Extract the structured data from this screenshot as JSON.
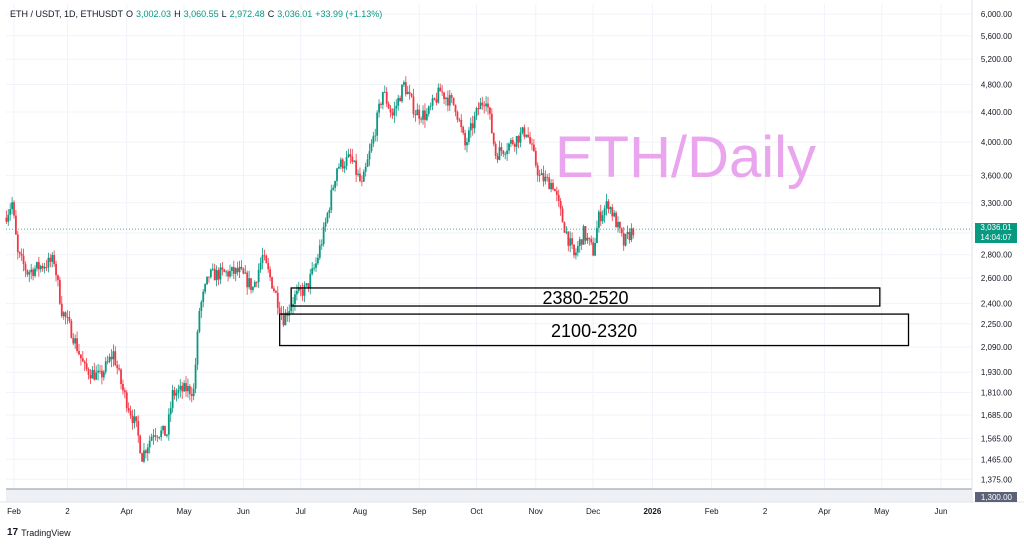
{
  "header": {
    "symbol": "ETH / USDT, 1D, ETHUSDT",
    "o_label": "O",
    "o_value": "3,002.03",
    "h_label": "H",
    "h_value": "3,060.55",
    "l_label": "L",
    "l_value": "2,972.48",
    "c_label": "C",
    "c_value": "3,036.01",
    "change": "+33.99 (+1.13%)"
  },
  "watermark": "ETH/Daily",
  "branding": "TradingView",
  "last_price": {
    "value": 3036.01,
    "label": "3,036.01",
    "countdown": "14:04:07"
  },
  "colors": {
    "up": "#089981",
    "down": "#f23645",
    "watermark": "#e9a6ee",
    "bottom_band": "#b2b5be",
    "price_line": "#089981"
  },
  "chart_data": {
    "type": "candlestick",
    "scale": "log",
    "y_ticks": [
      1300,
      1375,
      1465,
      1565,
      1685,
      1810,
      1930,
      2090,
      2250,
      2400,
      2600,
      2800,
      3000,
      3300,
      3600,
      4000,
      4400,
      4800,
      5200,
      5600,
      6000
    ],
    "y_tick_labels": [
      "1,300.00",
      "1,375.00",
      "1,465.00",
      "1,565.00",
      "1,685.00",
      "1,810.00",
      "1,930.00",
      "2,090.00",
      "2,250.00",
      "2,400.00",
      "2,600.00",
      "2,800.00",
      "3,000.00",
      "3,300.00",
      "3,600.00",
      "4,000.00",
      "4,400.00",
      "4,800.00",
      "5,200.00",
      "5,600.00",
      "6,000.00"
    ],
    "ylim": [
      1300,
      6000
    ],
    "x_ticks": [
      {
        "label": "Feb",
        "date": "2025-02-01"
      },
      {
        "label": "2",
        "date": "2025-03-01"
      },
      {
        "label": "Apr",
        "date": "2025-04-01"
      },
      {
        "label": "May",
        "date": "2025-05-01"
      },
      {
        "label": "Jun",
        "date": "2025-06-01"
      },
      {
        "label": "Jul",
        "date": "2025-07-01"
      },
      {
        "label": "Aug",
        "date": "2025-08-01"
      },
      {
        "label": "Sep",
        "date": "2025-09-01"
      },
      {
        "label": "Oct",
        "date": "2025-10-01"
      },
      {
        "label": "Nov",
        "date": "2025-11-01"
      },
      {
        "label": "Dec",
        "date": "2025-12-01"
      },
      {
        "label": "2026",
        "date": "2026-01-01"
      },
      {
        "label": "Feb",
        "date": "2026-02-01"
      },
      {
        "label": "2",
        "date": "2026-03-01"
      },
      {
        "label": "Apr",
        "date": "2026-04-01"
      },
      {
        "label": "May",
        "date": "2026-05-01"
      },
      {
        "label": "Jun",
        "date": "2026-06-01"
      }
    ],
    "first_date": "2025-01-28",
    "end_date": "2026-07-01",
    "price_path": [
      [
        "2025-01-28",
        3180
      ],
      [
        "2025-01-31",
        3300
      ],
      [
        "2025-02-03",
        2800
      ],
      [
        "2025-02-08",
        2650
      ],
      [
        "2025-02-15",
        2700
      ],
      [
        "2025-02-22",
        2750
      ],
      [
        "2025-02-26",
        2350
      ],
      [
        "2025-03-03",
        2200
      ],
      [
        "2025-03-10",
        1950
      ],
      [
        "2025-03-18",
        1900
      ],
      [
        "2025-03-25",
        2050
      ],
      [
        "2025-03-30",
        1820
      ],
      [
        "2025-04-06",
        1620
      ],
      [
        "2025-04-09",
        1480
      ],
      [
        "2025-04-15",
        1600
      ],
      [
        "2025-04-22",
        1590
      ],
      [
        "2025-04-25",
        1800
      ],
      [
        "2025-05-02",
        1830
      ],
      [
        "2025-05-06",
        1820
      ],
      [
        "2025-05-09",
        2350
      ],
      [
        "2025-05-14",
        2620
      ],
      [
        "2025-05-22",
        2640
      ],
      [
        "2025-05-30",
        2650
      ],
      [
        "2025-06-06",
        2520
      ],
      [
        "2025-06-11",
        2780
      ],
      [
        "2025-06-16",
        2560
      ],
      [
        "2025-06-22",
        2290
      ],
      [
        "2025-06-28",
        2450
      ],
      [
        "2025-07-04",
        2520
      ],
      [
        "2025-07-09",
        2720
      ],
      [
        "2025-07-13",
        3000
      ],
      [
        "2025-07-20",
        3700
      ],
      [
        "2025-07-27",
        3800
      ],
      [
        "2025-08-02",
        3480
      ],
      [
        "2025-08-08",
        4050
      ],
      [
        "2025-08-13",
        4700
      ],
      [
        "2025-08-18",
        4350
      ],
      [
        "2025-08-24",
        4800
      ],
      [
        "2025-08-30",
        4400
      ],
      [
        "2025-09-05",
        4350
      ],
      [
        "2025-09-12",
        4700
      ],
      [
        "2025-09-20",
        4480
      ],
      [
        "2025-09-25",
        3950
      ],
      [
        "2025-10-02",
        4450
      ],
      [
        "2025-10-06",
        4620
      ],
      [
        "2025-10-11",
        3850
      ],
      [
        "2025-10-17",
        3950
      ],
      [
        "2025-10-27",
        4150
      ],
      [
        "2025-11-03",
        3580
      ],
      [
        "2025-11-10",
        3500
      ],
      [
        "2025-11-15",
        3120
      ],
      [
        "2025-11-21",
        2780
      ],
      [
        "2025-11-26",
        3000
      ],
      [
        "2025-12-01",
        2830
      ],
      [
        "2025-12-04",
        3150
      ],
      [
        "2025-12-09",
        3300
      ],
      [
        "2025-12-13",
        3100
      ],
      [
        "2025-12-17",
        2900
      ],
      [
        "2025-12-19",
        2960
      ],
      [
        "2025-12-22",
        3036
      ]
    ],
    "zones": [
      {
        "label": "2380-2520",
        "low": 2380,
        "high": 2520,
        "start": "2025-06-26",
        "end": "2026-04-30"
      },
      {
        "label": "2100-2320",
        "low": 2100,
        "high": 2320,
        "start": "2025-06-20",
        "end": "2026-05-15"
      }
    ]
  }
}
